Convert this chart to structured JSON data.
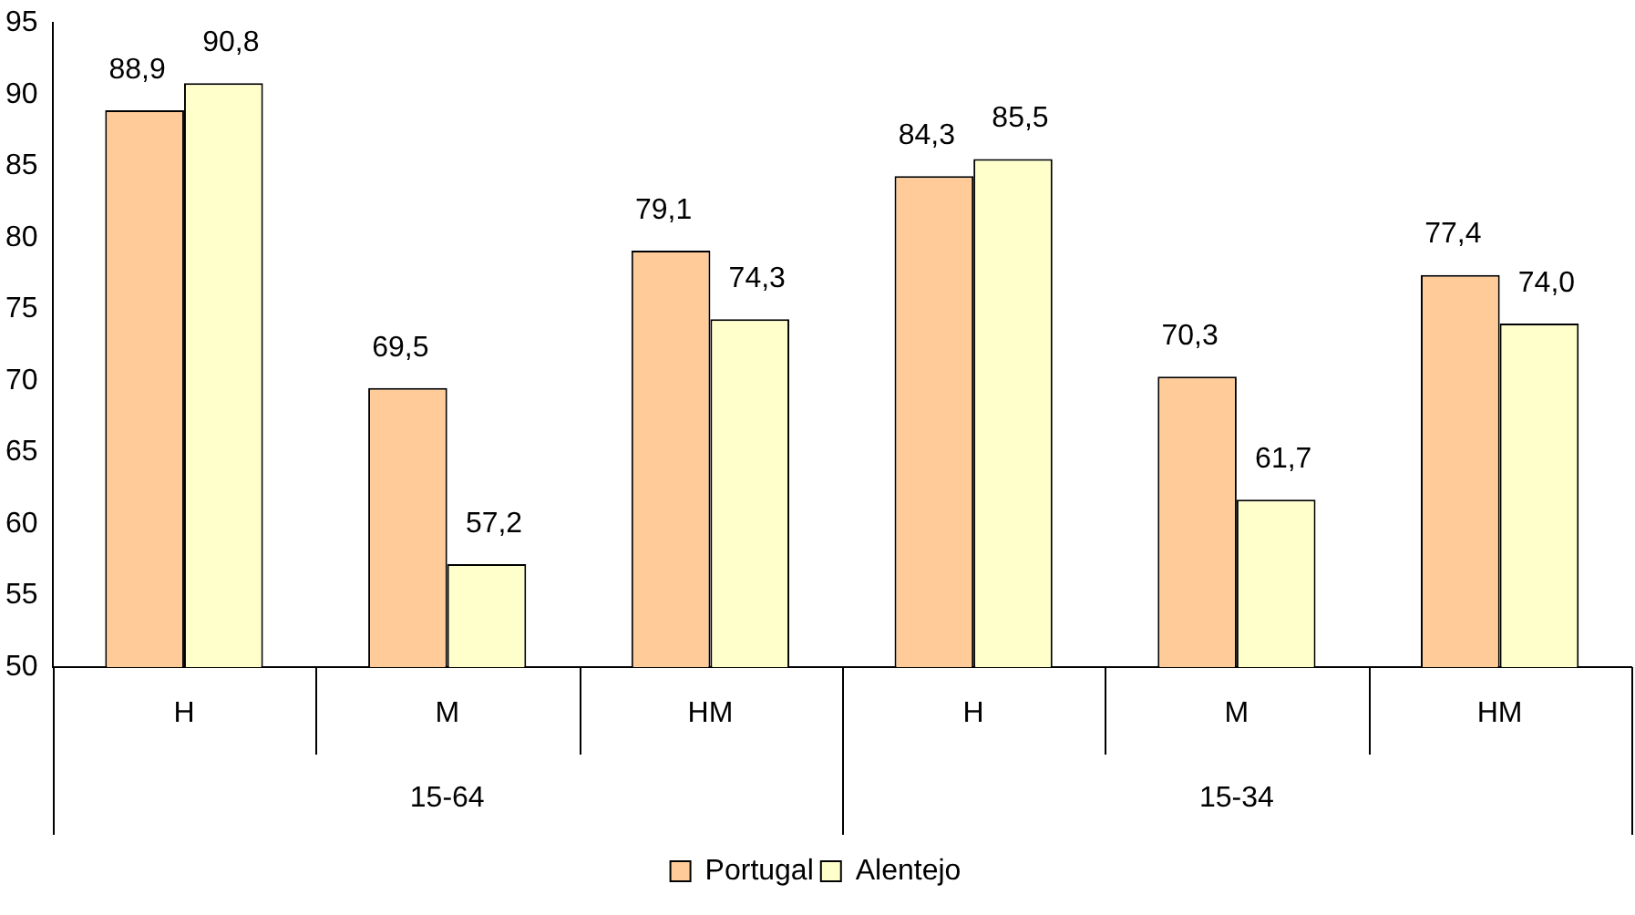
{
  "chart_data": {
    "type": "bar",
    "categories": [
      "H",
      "M",
      "HM",
      "H",
      "M",
      "HM"
    ],
    "series": [
      {
        "name": "Portugal",
        "color": "#ffcc99",
        "values": [
          88.9,
          69.5,
          79.1,
          84.3,
          70.3,
          77.4
        ],
        "value_labels": [
          "88,9",
          "69,5",
          "79,1",
          "84,3",
          "70,3",
          "77,4"
        ]
      },
      {
        "name": "Alentejo",
        "color": "#ffffcc",
        "values": [
          90.8,
          57.2,
          74.3,
          85.5,
          61.7,
          74.0
        ],
        "value_labels": [
          "90,8",
          "57,2",
          "74,3",
          "85,5",
          "61,7",
          "74,0"
        ]
      }
    ],
    "annotations": [
      "15-64",
      "15-34"
    ],
    "ylim": [
      50,
      95
    ],
    "yticks": [
      50,
      55,
      60,
      65,
      70,
      75,
      80,
      85,
      90,
      95
    ],
    "grid": false,
    "legend": "bottom"
  }
}
